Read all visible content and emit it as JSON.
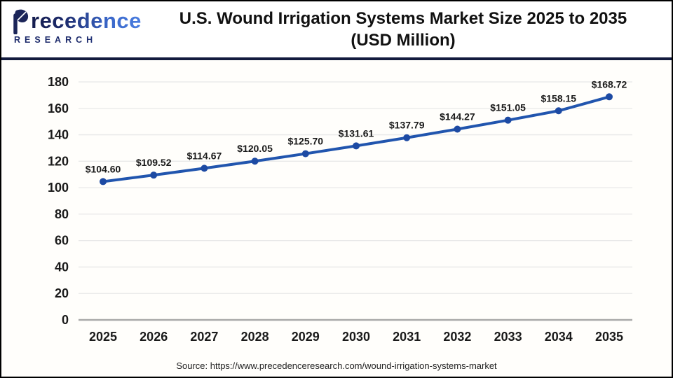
{
  "logo": {
    "brand": "recedence",
    "brand_full": "Precedence",
    "sub": "RESEARCH"
  },
  "header": {
    "title_line1": "U.S. Wound Irrigation Systems Market Size 2025 to 2035",
    "title_line2": "(USD Million)"
  },
  "footer": {
    "source": "Source: https://www.precedenceresearch.com/wound-irrigation-systems-market"
  },
  "colors": {
    "line": "#2155ae",
    "marker": "#1d4aa3",
    "grid": "#e8e8e8",
    "axis": "#a9a9a9",
    "text": "#1a1a1a",
    "divider": "#121a3e",
    "logo_dark": "#1c2a6b",
    "logo_light": "#3a67c9"
  },
  "chart_data": {
    "type": "line",
    "title": "U.S. Wound Irrigation Systems Market Size 2025 to 2035 (USD Million)",
    "categories": [
      "2025",
      "2026",
      "2027",
      "2028",
      "2029",
      "2030",
      "2031",
      "2032",
      "2033",
      "2034",
      "2035"
    ],
    "values": [
      104.6,
      109.52,
      114.67,
      120.05,
      125.7,
      131.61,
      137.79,
      144.27,
      151.05,
      158.15,
      168.72
    ],
    "point_labels": [
      "$104.60",
      "$109.52",
      "$114.67",
      "$120.05",
      "$125.70",
      "$131.61",
      "$137.79",
      "$144.27",
      "$151.05",
      "$158.15",
      "$168.72"
    ],
    "xlabel": "",
    "ylabel": "",
    "ylim": [
      0,
      180
    ],
    "ytick_step": 20,
    "yticks": [
      0,
      20,
      40,
      60,
      80,
      100,
      120,
      140,
      160,
      180
    ],
    "grid": true,
    "legend_position": "none",
    "unit": "USD Million"
  }
}
